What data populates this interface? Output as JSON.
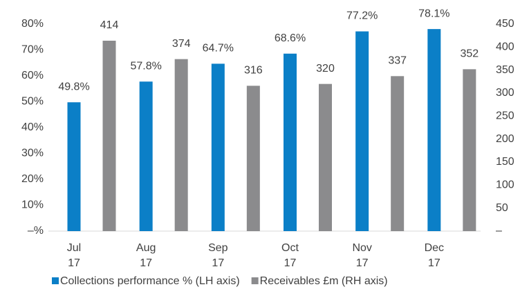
{
  "chart_data": {
    "type": "bar",
    "categories": [
      "Jul 17",
      "Aug 17",
      "Sep 17",
      "Oct 17",
      "Nov 17",
      "Dec 17"
    ],
    "series": [
      {
        "name": "Collections performance % (LH axis)",
        "color": "#0b7fc7",
        "values": [
          49.8,
          57.8,
          64.7,
          68.6,
          77.2,
          78.1
        ],
        "value_labels": [
          "49.8%",
          "57.8%",
          "64.7%",
          "68.6%",
          "77.2%",
          "78.1%"
        ]
      },
      {
        "name": "Receivables £m (RH axis)",
        "color": "#8b8b8d",
        "axis": "y2",
        "values": [
          414,
          374,
          316,
          320,
          337,
          352
        ]
      }
    ],
    "ylim": [
      0,
      80
    ],
    "yticks": [
      {
        "value": 0,
        "label": "–%"
      },
      {
        "value": 10,
        "label": "10%"
      },
      {
        "value": 20,
        "label": "20%"
      },
      {
        "value": 30,
        "label": "30%"
      },
      {
        "value": 40,
        "label": "40%"
      },
      {
        "value": 50,
        "label": "50%"
      },
      {
        "value": 60,
        "label": "60%"
      },
      {
        "value": 70,
        "label": "70%"
      },
      {
        "value": 80,
        "label": "80%"
      }
    ],
    "y2lim": [
      0,
      450
    ],
    "y2ticks": [
      {
        "value": 0,
        "label": "–"
      },
      50,
      100,
      150,
      200,
      250,
      300,
      350,
      400,
      450
    ],
    "grid": false,
    "legend": "bottom"
  }
}
